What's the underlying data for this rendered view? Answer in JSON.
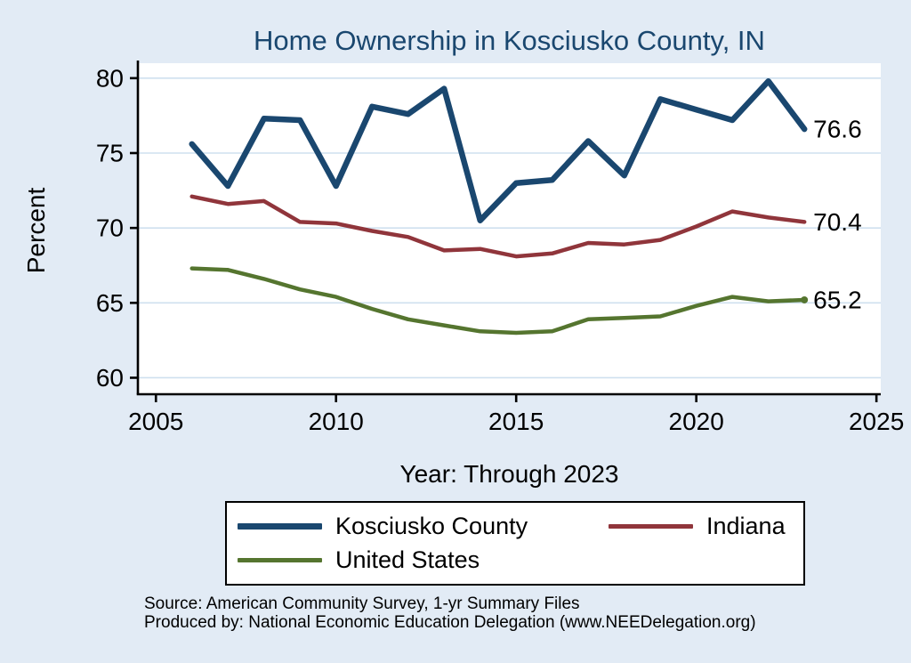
{
  "page": {
    "background": "#e2ebf5"
  },
  "chart_data": {
    "type": "line",
    "title": "Home Ownership in Kosciusko County, IN",
    "xlabel": "Year: Through 2023",
    "ylabel": "Percent",
    "x": [
      2006,
      2007,
      2008,
      2009,
      2010,
      2011,
      2012,
      2013,
      2014,
      2015,
      2016,
      2017,
      2018,
      2019,
      2020,
      2021,
      2022,
      2023
    ],
    "xticks": [
      2005,
      2010,
      2015,
      2020,
      2025
    ],
    "yticks": [
      60,
      65,
      70,
      75,
      80
    ],
    "xlim": [
      2004.5,
      2025.12
    ],
    "ylim": [
      58.9,
      81.0
    ],
    "grid": true,
    "legend_position": "bottom",
    "colors": {
      "plot_background": "#ffffff",
      "grid": "#cfe0ef",
      "axis": "#000000",
      "title": "#1a476f",
      "label_text": "#000000"
    },
    "series": [
      {
        "name": "Kosciusko County",
        "color": "#1a476f",
        "width": 6.5,
        "end_label": "76.6",
        "marker_last": false,
        "values": [
          75.6,
          72.8,
          77.3,
          77.2,
          72.8,
          78.1,
          77.6,
          79.3,
          70.5,
          73.0,
          73.2,
          75.8,
          73.5,
          78.6,
          77.9,
          77.2,
          79.8,
          76.6
        ]
      },
      {
        "name": "Indiana",
        "color": "#90353b",
        "width": 4.5,
        "end_label": "70.4",
        "marker_last": false,
        "values": [
          72.1,
          71.6,
          71.8,
          70.4,
          70.3,
          69.8,
          69.4,
          68.5,
          68.6,
          68.1,
          68.3,
          69.0,
          68.9,
          69.2,
          70.1,
          71.1,
          70.7,
          70.4
        ]
      },
      {
        "name": "United States",
        "color": "#55752f",
        "width": 4.5,
        "end_label": "65.2",
        "marker_last": true,
        "values": [
          67.3,
          67.2,
          66.6,
          65.9,
          65.4,
          64.6,
          63.9,
          63.5,
          63.1,
          63.0,
          63.1,
          63.9,
          64.0,
          64.1,
          64.8,
          65.4,
          65.1,
          65.2
        ]
      }
    ]
  },
  "notes": {
    "source": "Source: American Community Survey, 1-yr Summary Files",
    "produced_by": "Produced by: National Economic Education Delegation (www.NEEDelegation.org)"
  }
}
